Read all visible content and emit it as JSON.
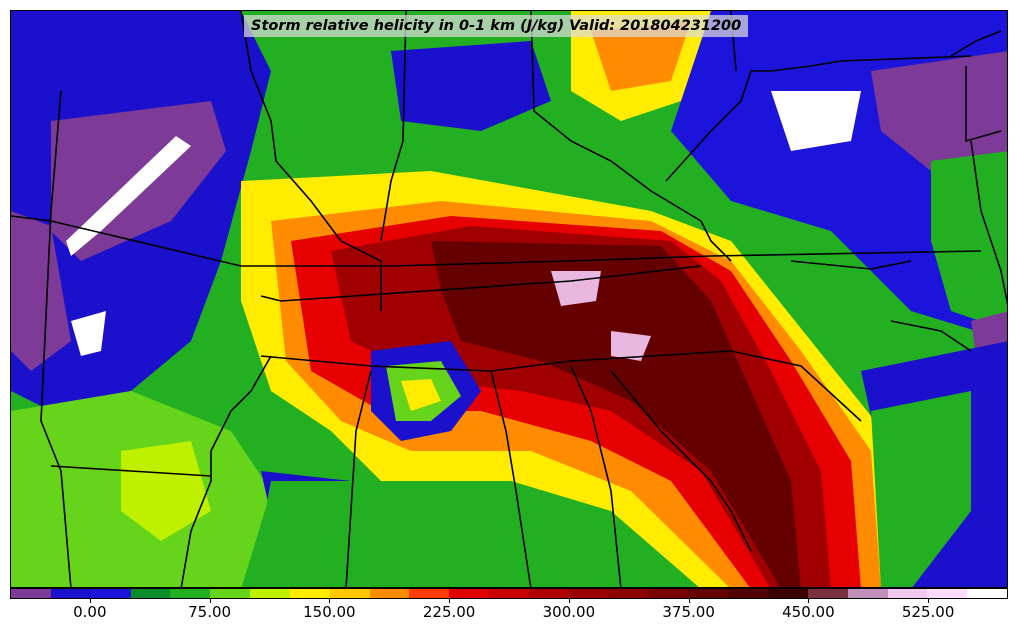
{
  "title": "Storm relative helicity in 0-1 km (J/kg) Valid: 201804231200",
  "colorbar": {
    "colors": [
      "#7d3a96",
      "#1b10cc",
      "#1d14dc",
      "#0b8c2a",
      "#22b022",
      "#66d41a",
      "#bff000",
      "#ffec00",
      "#ffc800",
      "#ff8c00",
      "#ff3c00",
      "#e00000",
      "#c80000",
      "#b00000",
      "#9a0000",
      "#8c0000",
      "#780000",
      "#640000",
      "#500000",
      "#3c0000",
      "#7a3040",
      "#c090b8",
      "#f0c8f0",
      "#ffdcff",
      "#ffffff"
    ],
    "tick_labels": [
      "0.00",
      "75.00",
      "150.00",
      "225.00",
      "300.00",
      "375.00",
      "450.00",
      "525.00"
    ]
  },
  "palette": {
    "purple": "#7d3a96",
    "blue": "#1b10cc",
    "darkgreen": "#0b8c2a",
    "green": "#22b022",
    "lightgreen": "#66d41a",
    "yellowgreen": "#bff000",
    "yellow": "#ffec00",
    "orange": "#ff8c00",
    "red": "#e60000",
    "darkred": "#a00000",
    "maroon": "#640000",
    "pink": "#e8b8e0",
    "white": "#ffffff"
  }
}
